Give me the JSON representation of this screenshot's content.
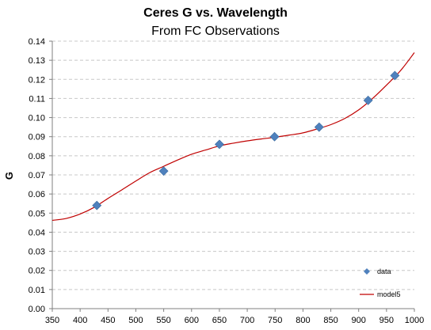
{
  "chart_data": {
    "type": "scatter",
    "title": "Ceres G vs. Wavelength",
    "subtitle": "From FC Observations",
    "xlabel": "",
    "ylabel": "G",
    "xlim": [
      350,
      1000
    ],
    "ylim": [
      0,
      0.14
    ],
    "x_ticks": [
      "350",
      "400",
      "450",
      "500",
      "550",
      "600",
      "650",
      "700",
      "750",
      "800",
      "850",
      "900",
      "950",
      "1000"
    ],
    "y_ticks": [
      "0.00",
      "0.01",
      "0.02",
      "0.03",
      "0.04",
      "0.05",
      "0.06",
      "0.07",
      "0.08",
      "0.09",
      "0.10",
      "0.11",
      "0.12",
      "0.13",
      "0.14"
    ],
    "grid": "horizontal dashed",
    "legend": "bottom-right",
    "series": [
      {
        "name": "data",
        "kind": "points",
        "marker": "diamond",
        "color": "#4f81bd",
        "x": [
          430,
          550,
          650,
          749,
          829,
          917,
          965
        ],
        "y": [
          0.054,
          0.072,
          0.086,
          0.09,
          0.095,
          0.109,
          0.122
        ]
      },
      {
        "name": "model5",
        "kind": "line",
        "color": "#c00000",
        "x": [
          350,
          375,
          400,
          425,
          450,
          475,
          500,
          525,
          550,
          575,
          600,
          625,
          650,
          675,
          700,
          725,
          750,
          775,
          800,
          825,
          850,
          875,
          900,
          925,
          950,
          975,
          1000
        ],
        "y": [
          0.0462,
          0.0472,
          0.0495,
          0.053,
          0.0577,
          0.0622,
          0.0668,
          0.0712,
          0.0745,
          0.0778,
          0.0808,
          0.083,
          0.0852,
          0.0866,
          0.0878,
          0.0888,
          0.0897,
          0.0908,
          0.092,
          0.094,
          0.0963,
          0.0995,
          0.104,
          0.11,
          0.117,
          0.1245,
          0.134
        ]
      }
    ]
  }
}
